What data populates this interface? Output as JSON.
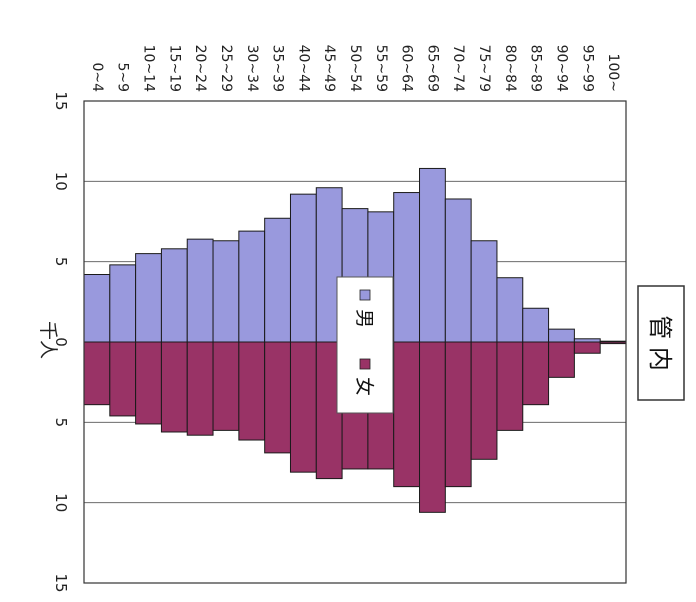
{
  "chart_data": {
    "type": "bar",
    "title": "管 内",
    "value_unit_label": "千人",
    "categories": [
      "0~4",
      "5~9",
      "10~14",
      "15~19",
      "20~24",
      "25~29",
      "30~34",
      "35~39",
      "40~44",
      "45~49",
      "50~54",
      "55~59",
      "60~64",
      "65~69",
      "70~74",
      "75~79",
      "80~84",
      "85~89",
      "90~94",
      "95~99",
      "100~"
    ],
    "series": [
      {
        "name": "男",
        "color": "#9999dd",
        "values": [
          4.2,
          4.8,
          5.5,
          5.8,
          6.4,
          6.3,
          6.9,
          7.7,
          9.2,
          9.6,
          8.3,
          8.1,
          9.3,
          10.8,
          8.9,
          6.3,
          4.0,
          2.1,
          0.8,
          0.2,
          0.05
        ]
      },
      {
        "name": "女",
        "color": "#993366",
        "values": [
          3.9,
          4.6,
          5.1,
          5.6,
          5.8,
          5.5,
          6.1,
          6.9,
          8.1,
          8.5,
          7.9,
          7.9,
          9.0,
          10.6,
          9.0,
          7.3,
          5.5,
          3.9,
          2.2,
          0.7,
          0.1
        ]
      }
    ],
    "value_axis": {
      "ticks": [
        "15",
        "10",
        "5",
        "0",
        "5",
        "10",
        "15"
      ],
      "range": [
        -15,
        15
      ]
    },
    "grid": true,
    "legend_position": "center"
  }
}
